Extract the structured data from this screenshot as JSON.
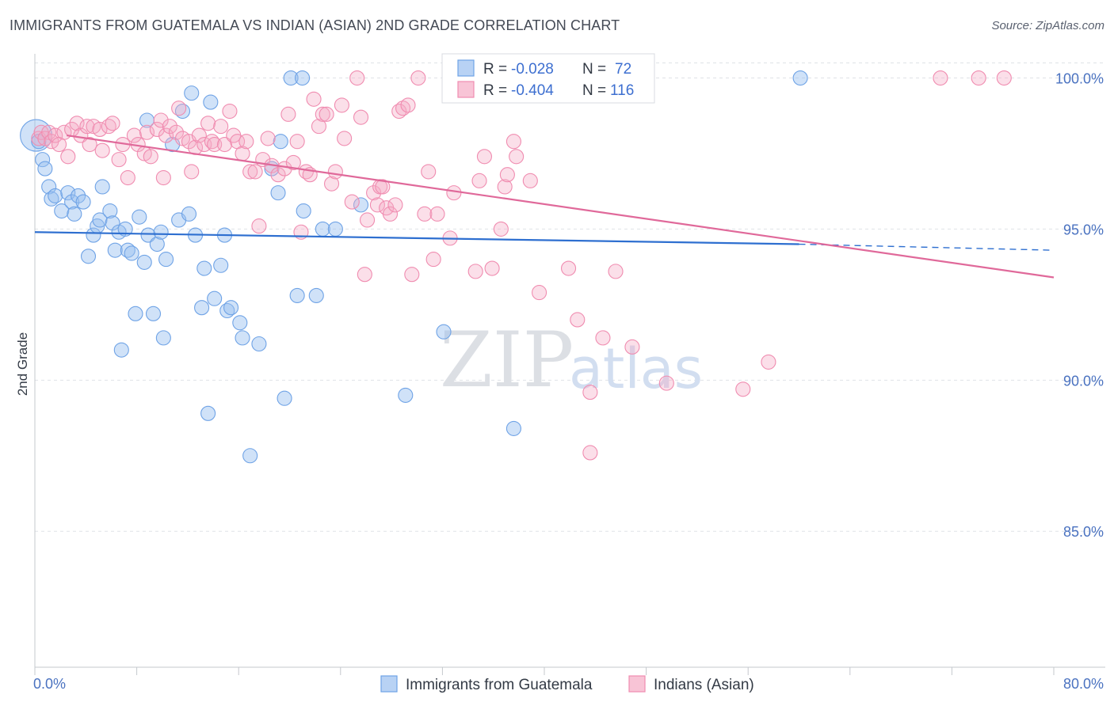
{
  "title": "IMMIGRANTS FROM GUATEMALA VS INDIAN (ASIAN) 2ND GRADE CORRELATION CHART",
  "source": "Source: ZipAtlas.com",
  "watermark": {
    "zip": "ZIP",
    "atlas": "atlas"
  },
  "chart_data": {
    "type": "scatter",
    "title": "IMMIGRANTS FROM GUATEMALA VS INDIAN (ASIAN) 2ND GRADE CORRELATION CHART",
    "xlabel": "",
    "ylabel": "2nd Grade",
    "xlim": [
      0,
      80
    ],
    "ylim": [
      80.5,
      100.8
    ],
    "x_tick_labels": [
      "0.0%",
      "80.0%"
    ],
    "y_ticks": [
      85,
      90,
      95,
      100
    ],
    "y_tick_labels": [
      "85.0%",
      "90.0%",
      "95.0%",
      "100.0%"
    ],
    "grid": true,
    "legend_position": "top-center",
    "colors": {
      "blue": "#6fa3e6",
      "pink": "#f08cb0",
      "blue_line": "#2e6fd0",
      "pink_line": "#e0699a"
    },
    "stats": [
      {
        "r_label": "R =",
        "r": "-0.028",
        "n_label": "N =",
        "n": "72"
      },
      {
        "r_label": "R =",
        "r": "-0.404",
        "n_label": "N =",
        "n": "116"
      }
    ],
    "series": [
      {
        "name": "Immigrants from Guatemala",
        "color": "#6fa3e6",
        "trend": {
          "x0": 0,
          "y0": 94.9,
          "x1": 60,
          "y1": 94.5,
          "dash_to": 80,
          "dash_y": 94.3
        },
        "points": [
          [
            0.1,
            98.1
          ],
          [
            0.3,
            97.9
          ],
          [
            0.6,
            97.3
          ],
          [
            0.8,
            97.0
          ],
          [
            1.1,
            96.4
          ],
          [
            1.3,
            96.0
          ],
          [
            1.6,
            96.1
          ],
          [
            2.1,
            95.6
          ],
          [
            2.6,
            96.2
          ],
          [
            2.9,
            95.9
          ],
          [
            3.1,
            95.5
          ],
          [
            3.4,
            96.1
          ],
          [
            3.8,
            95.9
          ],
          [
            4.2,
            94.1
          ],
          [
            4.6,
            94.8
          ],
          [
            4.9,
            95.1
          ],
          [
            5.1,
            95.3
          ],
          [
            5.3,
            96.4
          ],
          [
            5.9,
            95.6
          ],
          [
            6.1,
            95.2
          ],
          [
            6.3,
            94.3
          ],
          [
            6.6,
            94.9
          ],
          [
            6.8,
            91.0
          ],
          [
            7.1,
            95.0
          ],
          [
            7.3,
            94.3
          ],
          [
            7.6,
            94.2
          ],
          [
            7.9,
            92.2
          ],
          [
            8.2,
            95.4
          ],
          [
            8.6,
            93.9
          ],
          [
            8.8,
            98.6
          ],
          [
            8.9,
            94.8
          ],
          [
            9.3,
            92.2
          ],
          [
            9.6,
            94.5
          ],
          [
            9.9,
            94.9
          ],
          [
            10.1,
            91.4
          ],
          [
            10.3,
            94.0
          ],
          [
            10.8,
            97.8
          ],
          [
            11.3,
            95.3
          ],
          [
            11.6,
            98.9
          ],
          [
            12.1,
            95.5
          ],
          [
            12.3,
            99.5
          ],
          [
            12.6,
            94.8
          ],
          [
            13.1,
            92.4
          ],
          [
            13.3,
            93.7
          ],
          [
            13.6,
            88.9
          ],
          [
            13.8,
            99.2
          ],
          [
            14.1,
            92.7
          ],
          [
            14.6,
            93.8
          ],
          [
            14.9,
            94.8
          ],
          [
            15.1,
            92.3
          ],
          [
            15.4,
            92.4
          ],
          [
            16.1,
            91.9
          ],
          [
            16.3,
            91.4
          ],
          [
            16.9,
            87.5
          ],
          [
            17.6,
            91.2
          ],
          [
            18.6,
            97.0
          ],
          [
            19.1,
            96.2
          ],
          [
            19.3,
            97.9
          ],
          [
            19.6,
            89.4
          ],
          [
            20.1,
            100.0
          ],
          [
            20.6,
            92.8
          ],
          [
            21.1,
            95.6
          ],
          [
            21.0,
            100.0
          ],
          [
            22.1,
            92.8
          ],
          [
            22.6,
            95.0
          ],
          [
            23.6,
            95.0
          ],
          [
            25.6,
            95.8
          ],
          [
            29.1,
            89.5
          ],
          [
            32.1,
            91.6
          ],
          [
            37.6,
            88.4
          ],
          [
            37.6,
            100.0
          ],
          [
            60.1,
            100.0
          ]
        ]
      },
      {
        "name": "Indians (Asian)",
        "color": "#f08cb0",
        "trend": {
          "x0": 2.5,
          "y0": 98.1,
          "x1": 80,
          "y1": 93.4
        },
        "points": [
          [
            0.3,
            98.0
          ],
          [
            0.5,
            98.2
          ],
          [
            0.8,
            98.0
          ],
          [
            1.1,
            98.2
          ],
          [
            1.3,
            97.9
          ],
          [
            1.6,
            98.1
          ],
          [
            1.9,
            97.8
          ],
          [
            2.3,
            98.2
          ],
          [
            2.6,
            97.4
          ],
          [
            2.9,
            98.3
          ],
          [
            3.3,
            98.5
          ],
          [
            3.6,
            98.1
          ],
          [
            4.1,
            98.4
          ],
          [
            4.3,
            97.8
          ],
          [
            4.6,
            98.4
          ],
          [
            5.1,
            98.3
          ],
          [
            5.3,
            97.6
          ],
          [
            5.8,
            98.4
          ],
          [
            6.1,
            98.5
          ],
          [
            6.6,
            97.3
          ],
          [
            6.9,
            97.8
          ],
          [
            7.3,
            96.7
          ],
          [
            7.8,
            98.1
          ],
          [
            8.1,
            97.8
          ],
          [
            8.6,
            97.5
          ],
          [
            8.8,
            98.2
          ],
          [
            9.1,
            97.4
          ],
          [
            9.6,
            98.3
          ],
          [
            9.9,
            98.6
          ],
          [
            10.1,
            96.7
          ],
          [
            10.3,
            98.1
          ],
          [
            10.6,
            98.4
          ],
          [
            11.1,
            98.2
          ],
          [
            11.3,
            99.0
          ],
          [
            11.6,
            98.0
          ],
          [
            12.1,
            97.9
          ],
          [
            12.3,
            96.9
          ],
          [
            12.6,
            97.7
          ],
          [
            12.9,
            98.1
          ],
          [
            13.3,
            97.8
          ],
          [
            13.6,
            98.5
          ],
          [
            13.9,
            97.9
          ],
          [
            14.1,
            97.8
          ],
          [
            14.6,
            98.4
          ],
          [
            14.9,
            97.8
          ],
          [
            15.3,
            98.9
          ],
          [
            15.6,
            98.1
          ],
          [
            15.9,
            97.9
          ],
          [
            16.3,
            97.5
          ],
          [
            16.6,
            97.9
          ],
          [
            16.9,
            96.9
          ],
          [
            17.3,
            96.9
          ],
          [
            17.6,
            95.1
          ],
          [
            17.9,
            97.3
          ],
          [
            18.3,
            98.0
          ],
          [
            18.6,
            97.1
          ],
          [
            19.1,
            96.8
          ],
          [
            19.6,
            97.0
          ],
          [
            19.9,
            98.8
          ],
          [
            20.3,
            97.2
          ],
          [
            20.6,
            97.9
          ],
          [
            20.9,
            94.9
          ],
          [
            21.3,
            96.9
          ],
          [
            21.6,
            96.8
          ],
          [
            21.9,
            99.3
          ],
          [
            22.3,
            98.4
          ],
          [
            22.6,
            98.8
          ],
          [
            22.9,
            98.8
          ],
          [
            23.3,
            96.5
          ],
          [
            23.6,
            96.9
          ],
          [
            24.1,
            99.1
          ],
          [
            24.3,
            98.0
          ],
          [
            24.9,
            95.9
          ],
          [
            25.3,
            100.0
          ],
          [
            25.6,
            98.7
          ],
          [
            25.9,
            93.5
          ],
          [
            26.1,
            95.3
          ],
          [
            26.6,
            96.2
          ],
          [
            26.9,
            95.8
          ],
          [
            27.1,
            96.4
          ],
          [
            27.3,
            96.4
          ],
          [
            27.6,
            95.7
          ],
          [
            27.9,
            95.5
          ],
          [
            28.3,
            95.8
          ],
          [
            28.6,
            98.9
          ],
          [
            28.9,
            99.0
          ],
          [
            29.3,
            99.1
          ],
          [
            29.6,
            93.5
          ],
          [
            30.1,
            100.0
          ],
          [
            30.6,
            95.5
          ],
          [
            30.9,
            96.9
          ],
          [
            31.3,
            94.0
          ],
          [
            31.6,
            95.5
          ],
          [
            32.6,
            94.7
          ],
          [
            32.9,
            96.2
          ],
          [
            34.6,
            93.6
          ],
          [
            34.9,
            96.6
          ],
          [
            35.3,
            97.4
          ],
          [
            35.9,
            93.7
          ],
          [
            36.6,
            95.0
          ],
          [
            36.9,
            96.4
          ],
          [
            37.1,
            96.8
          ],
          [
            37.6,
            97.9
          ],
          [
            37.8,
            97.4
          ],
          [
            38.9,
            96.6
          ],
          [
            39.6,
            92.9
          ],
          [
            40.6,
            100.0
          ],
          [
            41.9,
            93.7
          ],
          [
            42.6,
            92.0
          ],
          [
            43.6,
            89.6
          ],
          [
            44.6,
            91.4
          ],
          [
            45.6,
            93.6
          ],
          [
            46.9,
            91.1
          ],
          [
            49.6,
            89.9
          ],
          [
            55.6,
            89.7
          ],
          [
            57.6,
            90.6
          ],
          [
            71.1,
            100.0
          ],
          [
            74.1,
            100.0
          ],
          [
            76.1,
            100.0
          ],
          [
            43.6,
            87.6
          ]
        ]
      }
    ]
  }
}
